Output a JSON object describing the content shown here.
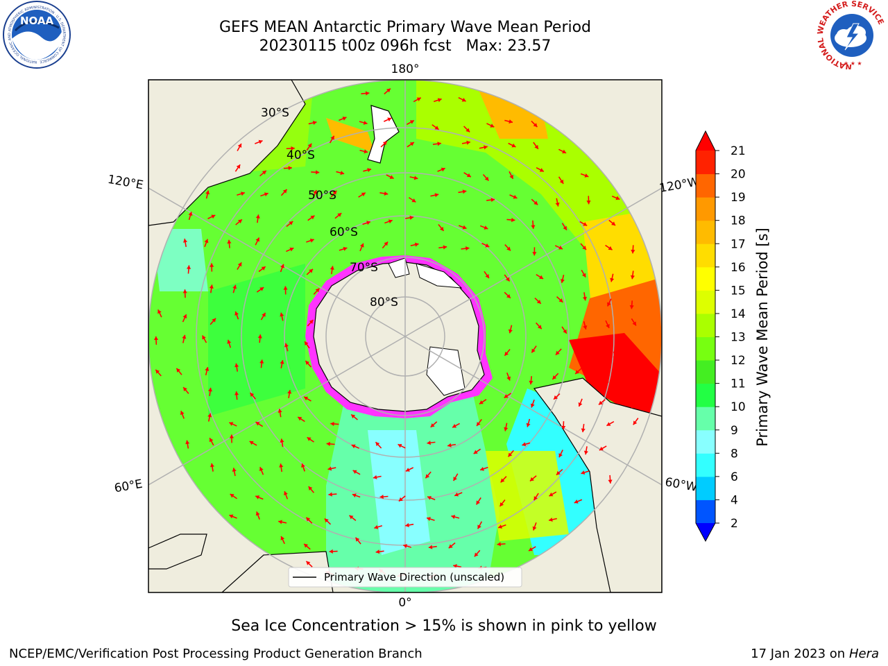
{
  "title": {
    "line1": "GEFS MEAN Antarctic Primary Wave Mean Period",
    "line2": "20230115 t00z 096h fcst   Max: 23.57"
  },
  "logos": {
    "noaa": {
      "text": "NOAA",
      "ring_text": "NATIONAL OCEANIC AND ATMOSPHERIC ADMINISTRATION · U.S. DEPARTMENT OF COMMERCE",
      "icon": "noaa-logo"
    },
    "nws": {
      "ring_text": "NATIONAL WEATHER SERVICE",
      "icon": "nws-logo"
    }
  },
  "map": {
    "projection": "south-polar-stereographic",
    "longitude_labels": {
      "top": "180°",
      "bottom": "0°",
      "upper_left": "120°E",
      "upper_right": "120°W",
      "lower_left": "60°E",
      "lower_right": "60°W"
    },
    "latitude_labels": [
      "30°S",
      "40°S",
      "50°S",
      "60°S",
      "70°S",
      "80°S"
    ],
    "legend_label": "Primary Wave Direction (unscaled)",
    "ocean_color": "#66ff33",
    "land_color": "#efedde",
    "ice_color": "#ff33ff",
    "arrow_color": "#ff0000"
  },
  "colorbar": {
    "label": "Primary Wave Mean Period [s]",
    "ticks": [
      "2",
      "4",
      "6",
      "8",
      "9",
      "10",
      "11",
      "12",
      "13",
      "14",
      "15",
      "16",
      "17",
      "18",
      "19",
      "20",
      "21"
    ],
    "colors": [
      "#0055ff",
      "#00ccff",
      "#33ffff",
      "#88ffff",
      "#66ffaa",
      "#22ff44",
      "#44ee22",
      "#77ff11",
      "#aaff00",
      "#ddff00",
      "#ffff00",
      "#ffdd00",
      "#ffbb00",
      "#ff9900",
      "#ff6600",
      "#ff2200"
    ],
    "under_color": "#0000ff",
    "over_color": "#ff0000"
  },
  "note": "Sea Ice Concentration > 15% is shown in pink to yellow",
  "footer": {
    "left": "NCEP/EMC/Verification Post Processing Product Generation Branch",
    "right_date": "17 Jan 2023 on ",
    "right_machine": "Hera"
  }
}
